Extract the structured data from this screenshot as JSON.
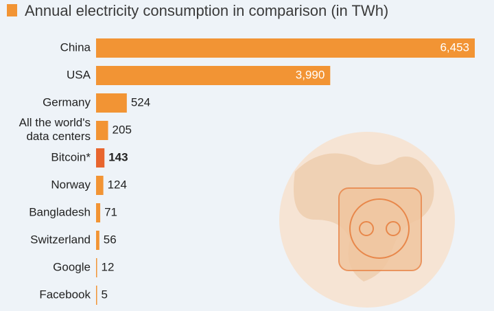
{
  "chart_data": {
    "type": "bar",
    "orientation": "horizontal",
    "title": "Annual electricity consumption in comparison (in TWh)",
    "categories": [
      "China",
      "USA",
      "Germany",
      "All the world's\ndata centers",
      "Bitcoin*",
      "Norway",
      "Bangladesh",
      "Switzerland",
      "Google",
      "Facebook"
    ],
    "values": [
      6453,
      3990,
      524,
      205,
      143,
      124,
      71,
      56,
      12,
      5
    ],
    "value_labels": [
      "6,453",
      "3,990",
      "524",
      "205",
      "143",
      "124",
      "71",
      "56",
      "12",
      "5"
    ],
    "color": "#f29434",
    "colors": [
      "#f29434",
      "#f29434",
      "#f29434",
      "#f29434",
      "#e8652e",
      "#f29434",
      "#f29434",
      "#f29434",
      "#f29434",
      "#f29434"
    ]
  }
}
